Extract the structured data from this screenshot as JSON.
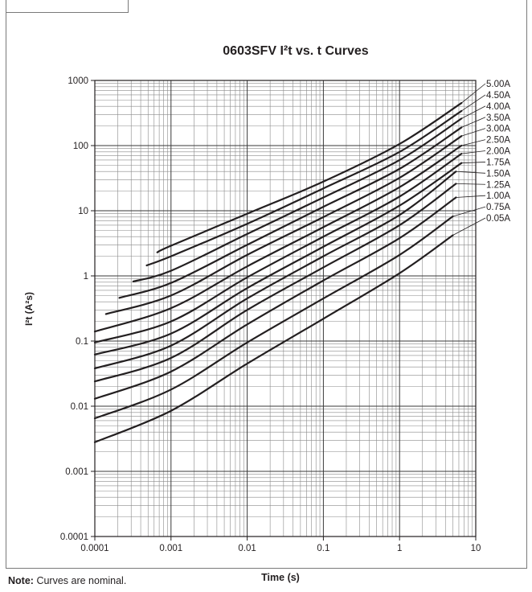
{
  "note": {
    "prefix": "Note:",
    "text": "Curves are nominal."
  },
  "chart_data": {
    "type": "line",
    "title": "0603SFV I²t  vs. t Curves",
    "xlabel": "Time (s)",
    "ylabel": "I²t (A²s)",
    "xscale": "log",
    "yscale": "log",
    "xlim": [
      0.0001,
      10
    ],
    "ylim": [
      0.0001,
      1000
    ],
    "xticks": [
      "0.0001",
      "0.001",
      "0.01",
      "0.1",
      "1",
      "10"
    ],
    "yticks": [
      "0.0001",
      "0.001",
      "0.01",
      "0.1",
      "1",
      "10",
      "100",
      "1000"
    ],
    "grid": true,
    "legend": "right-side labels",
    "line_color": "#231f20",
    "series": [
      {
        "name": "5.00A",
        "points": [
          [
            0.00066,
            2.3
          ],
          [
            0.001,
            2.9
          ],
          [
            0.01,
            9.0
          ],
          [
            0.1,
            28.0
          ],
          [
            1,
            106.0
          ],
          [
            6.5,
            450.0
          ]
        ]
      },
      {
        "name": "4.50A",
        "points": [
          [
            0.00048,
            1.45
          ],
          [
            0.001,
            2.0
          ],
          [
            0.01,
            6.3
          ],
          [
            0.1,
            22.0
          ],
          [
            1,
            80.0
          ],
          [
            6.5,
            340.0
          ]
        ]
      },
      {
        "name": "4.00A",
        "points": [
          [
            0.00032,
            0.82
          ],
          [
            0.001,
            1.2
          ],
          [
            0.01,
            4.4
          ],
          [
            0.1,
            16.0
          ],
          [
            1,
            60.0
          ],
          [
            6.5,
            260.0
          ]
        ]
      },
      {
        "name": "3.50A",
        "points": [
          [
            0.00021,
            0.46
          ],
          [
            0.001,
            0.78
          ],
          [
            0.01,
            3.0
          ],
          [
            0.1,
            11.5
          ],
          [
            1,
            44.0
          ],
          [
            6.5,
            190.0
          ]
        ]
      },
      {
        "name": "3.00A",
        "points": [
          [
            0.00014,
            0.26
          ],
          [
            0.001,
            0.5
          ],
          [
            0.01,
            2.1
          ],
          [
            0.1,
            8.0
          ],
          [
            1,
            32.0
          ],
          [
            6.5,
            140.0
          ]
        ]
      },
      {
        "name": "2.50A",
        "points": [
          [
            0.0001,
            0.14
          ],
          [
            0.001,
            0.32
          ],
          [
            0.01,
            1.4
          ],
          [
            0.1,
            5.6
          ],
          [
            1,
            23.0
          ],
          [
            6.5,
            100.0
          ]
        ]
      },
      {
        "name": "2.00A",
        "points": [
          [
            0.0001,
            0.095
          ],
          [
            0.001,
            0.2
          ],
          [
            0.01,
            0.95
          ],
          [
            0.1,
            4.0
          ],
          [
            1,
            16.5
          ],
          [
            6.5,
            75.0
          ]
        ]
      },
      {
        "name": "1.75A",
        "points": [
          [
            0.0001,
            0.062
          ],
          [
            0.001,
            0.13
          ],
          [
            0.01,
            0.65
          ],
          [
            0.1,
            2.8
          ],
          [
            1,
            12.0
          ],
          [
            6.5,
            54.0
          ]
        ]
      },
      {
        "name": "1.50A",
        "points": [
          [
            0.0001,
            0.038
          ],
          [
            0.001,
            0.085
          ],
          [
            0.01,
            0.45
          ],
          [
            0.1,
            2.0
          ],
          [
            1,
            8.6
          ],
          [
            5.5,
            40.0
          ]
        ]
      },
      {
        "name": "1.25A",
        "points": [
          [
            0.0001,
            0.024
          ],
          [
            0.001,
            0.055
          ],
          [
            0.01,
            0.3
          ],
          [
            0.1,
            1.35
          ],
          [
            1,
            6.0
          ],
          [
            5.5,
            26.0
          ]
        ]
      },
      {
        "name": "1.00A",
        "points": [
          [
            0.0001,
            0.013
          ],
          [
            0.001,
            0.034
          ],
          [
            0.01,
            0.18
          ],
          [
            0.1,
            0.85
          ],
          [
            1,
            3.8
          ],
          [
            5.5,
            16.0
          ]
        ]
      },
      {
        "name": "0.75A",
        "points": [
          [
            0.0001,
            0.0065
          ],
          [
            0.001,
            0.018
          ],
          [
            0.01,
            0.095
          ],
          [
            0.1,
            0.45
          ],
          [
            1,
            2.1
          ],
          [
            5.0,
            8.2
          ]
        ]
      },
      {
        "name": "0.05A",
        "points": [
          [
            0.0001,
            0.0028
          ],
          [
            0.001,
            0.0085
          ],
          [
            0.01,
            0.045
          ],
          [
            0.1,
            0.22
          ],
          [
            1,
            1.1
          ],
          [
            5.0,
            4.2
          ]
        ]
      }
    ]
  }
}
